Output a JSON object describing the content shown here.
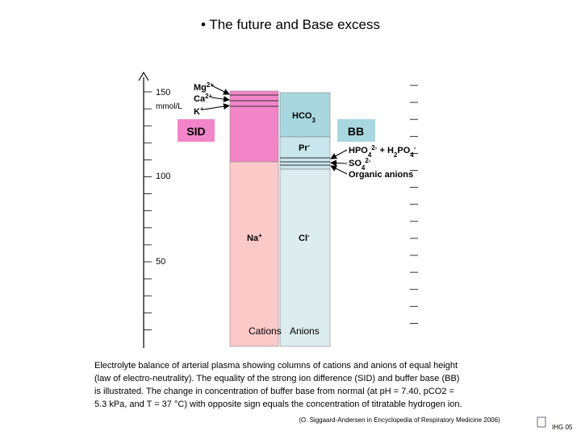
{
  "title": "• The future and Base excess",
  "diagram": {
    "axis": {
      "unit": "mmol/L",
      "ticks": [
        "150",
        "100",
        "50"
      ]
    },
    "cations_minor": [
      [
        {
          "text": "Mg"
        },
        {
          "sup": "2+"
        }
      ],
      [
        {
          "text": "Ca"
        },
        {
          "sup": "2+"
        }
      ],
      [
        {
          "text": "K"
        },
        {
          "sup": "+"
        }
      ]
    ],
    "cation_major": [
      {
        "text": "Na"
      },
      {
        "sup": "+"
      }
    ],
    "hco3": [
      {
        "text": "HCO"
      },
      {
        "sub": "3"
      }
    ],
    "pr": [
      {
        "text": "Pr"
      },
      {
        "sup": "-"
      }
    ],
    "cl": [
      {
        "text": "Cl"
      },
      {
        "sup": "-"
      }
    ],
    "anions_minor": [
      [
        {
          "text": "HPO"
        },
        {
          "sub": "4"
        },
        {
          "sup": "2-"
        },
        {
          "text": " + H"
        },
        {
          "sub": "2"
        },
        {
          "text": "PO"
        },
        {
          "sub": "4"
        },
        {
          "sup": "-"
        }
      ],
      [
        {
          "text": "SO"
        },
        {
          "sub": "4"
        },
        {
          "sup": "2-"
        }
      ],
      [
        {
          "text": "Organic anions"
        }
      ]
    ],
    "sid": "SID",
    "bb": "BB",
    "column_labels": [
      "Cations",
      "Anions"
    ]
  },
  "caption": [
    "Electrolyte balance of arterial plasma showing columns of cations and anions of equal height",
    "(law of electro-neutrality). The equality of the strong ion difference (SID) and buffer base (BB)",
    "is illustrated. The change in concentration of buffer base from normal (at pH = 7.40, pCO2 =",
    "5.3 kPa, and T = 37 °C) with opposite sign equals the concentration of titratable hydrogen ion."
  ],
  "citation": "(O. Siggaard-Andersen in Encyclopedia of Respiratory Medicine 2006)",
  "footer": "IHG 05"
}
